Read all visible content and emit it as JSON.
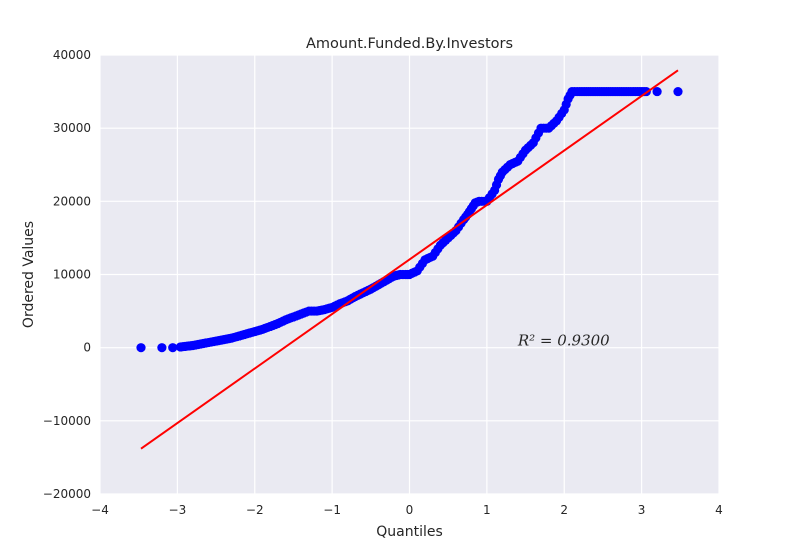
{
  "chart_data": {
    "type": "scatter",
    "title": "Amount.Funded.By.Investors",
    "xlabel": "Quantiles",
    "ylabel": "Ordered Values",
    "xlim": [
      -4,
      4
    ],
    "ylim": [
      -20000,
      40000
    ],
    "xticks": [
      "−4",
      "−3",
      "−2",
      "−1",
      "0",
      "1",
      "2",
      "3",
      "4"
    ],
    "yticks": [
      "−20000",
      "−10000",
      "0",
      "10000",
      "20000",
      "30000",
      "40000"
    ],
    "grid": true,
    "background": "#EAEAF2",
    "point_color": "#0000FF",
    "line_color": "#FF0000",
    "annotation": {
      "text": "R² = 0.9300",
      "x": 1.4,
      "y": 1000
    },
    "fit_line": {
      "x": [
        -3.47,
        3.47
      ],
      "y": [
        -13800,
        37900
      ]
    },
    "points": {
      "x": [
        -3.47,
        -3.2,
        -3.06,
        -2.96,
        -2.88,
        -2.8,
        -2.7,
        -2.6,
        -2.5,
        -2.4,
        -2.3,
        -2.2,
        -2.1,
        -2.0,
        -1.9,
        -1.8,
        -1.7,
        -1.6,
        -1.5,
        -1.4,
        -1.3,
        -1.2,
        -1.1,
        -1.0,
        -0.9,
        -0.8,
        -0.7,
        -0.6,
        -0.5,
        -0.4,
        -0.3,
        -0.2,
        -0.12,
        -0.05,
        0.0,
        0.1,
        0.2,
        0.3,
        0.4,
        0.5,
        0.6,
        0.7,
        0.75,
        0.8,
        0.85,
        0.9,
        1.0,
        1.1,
        1.15,
        1.2,
        1.3,
        1.4,
        1.5,
        1.6,
        1.7,
        1.8,
        1.9,
        2.0,
        2.05,
        2.1,
        2.2,
        2.4,
        2.6,
        2.8,
        2.95,
        3.06,
        3.2,
        3.47
      ],
      "y": [
        0,
        0,
        0,
        100,
        200,
        300,
        500,
        700,
        900,
        1100,
        1300,
        1600,
        1900,
        2200,
        2500,
        2900,
        3300,
        3800,
        4200,
        4600,
        5000,
        5000,
        5200,
        5500,
        6000,
        6400,
        7000,
        7500,
        8000,
        8600,
        9200,
        9800,
        10000,
        10000,
        10000,
        10500,
        12000,
        12500,
        14000,
        15000,
        16000,
        17500,
        18200,
        19000,
        19800,
        20000,
        20000,
        21500,
        23000,
        24000,
        25000,
        25500,
        27000,
        28000,
        30000,
        30000,
        31000,
        32500,
        34000,
        35000,
        35000,
        35000,
        35000,
        35000,
        35000,
        35000,
        35000,
        35000
      ]
    }
  }
}
